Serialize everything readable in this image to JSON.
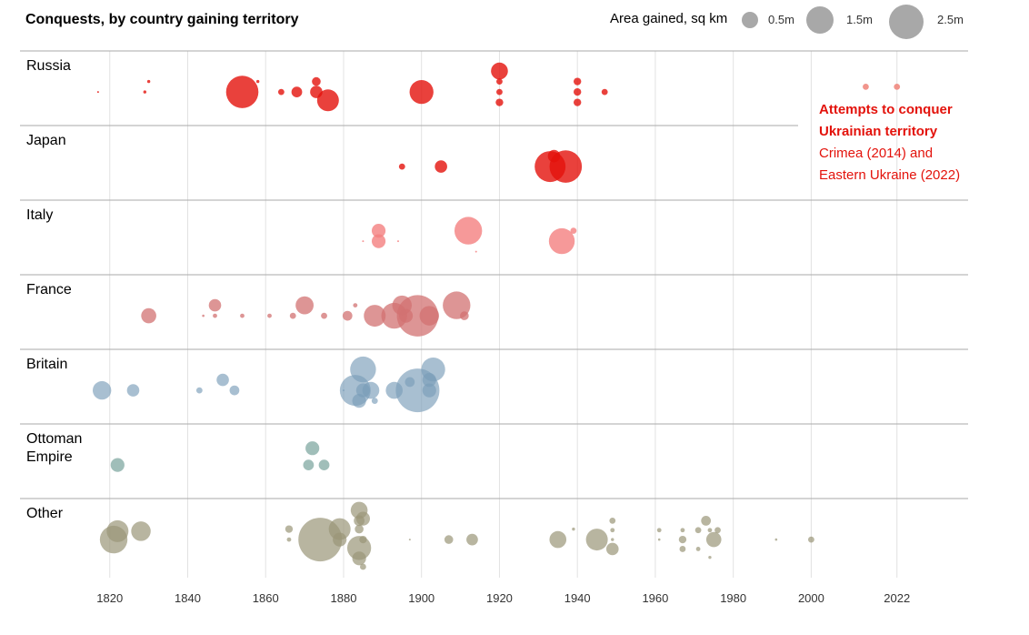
{
  "chart_data": {
    "type": "scatter",
    "title": "Conquests, by country gaining territory",
    "legend": {
      "title": "Area gained, sq km",
      "sizes": [
        {
          "label": "0.5m",
          "value": 0.5
        },
        {
          "label": "1.5m",
          "value": 1.5
        },
        {
          "label": "2.5m",
          "value": 2.5
        }
      ]
    },
    "x_ticks": [
      1820,
      1840,
      1860,
      1880,
      1900,
      1920,
      1940,
      1960,
      1980,
      2000,
      2022
    ],
    "xlim": [
      1816,
      2026
    ],
    "series": [
      {
        "name": "Russia",
        "color": "#e3120b",
        "opacity": 0.8,
        "points": [
          {
            "x": 1817,
            "y": 0,
            "v": 0.001
          },
          {
            "x": 1829,
            "y": 0,
            "v": 0.005
          },
          {
            "x": 1830,
            "y": 0.5,
            "v": 0.005
          },
          {
            "x": 1854,
            "y": 0,
            "v": 0.55
          },
          {
            "x": 1858,
            "y": 0.5,
            "v": 0.005
          },
          {
            "x": 1864,
            "y": 0,
            "v": 0.02
          },
          {
            "x": 1868,
            "y": 0,
            "v": 0.06
          },
          {
            "x": 1873,
            "y": 0.5,
            "v": 0.04
          },
          {
            "x": 1873,
            "y": 0,
            "v": 0.08
          },
          {
            "x": 1876,
            "y": -0.4,
            "v": 0.25
          },
          {
            "x": 1900,
            "y": 0,
            "v": 0.3
          },
          {
            "x": 1920,
            "y": 1,
            "v": 0.15
          },
          {
            "x": 1920,
            "y": 0.5,
            "v": 0.02
          },
          {
            "x": 1920,
            "y": 0,
            "v": 0.02
          },
          {
            "x": 1920,
            "y": -0.5,
            "v": 0.03
          },
          {
            "x": 1940,
            "y": 0.5,
            "v": 0.03
          },
          {
            "x": 1940,
            "y": 0,
            "v": 0.03
          },
          {
            "x": 1940,
            "y": -0.5,
            "v": 0.03
          },
          {
            "x": 1947,
            "y": 0,
            "v": 0.02
          }
        ]
      },
      {
        "name": "Russia (Ukraine)",
        "color": "#f08a7f",
        "opacity": 0.9,
        "points": [
          {
            "x": 2014,
            "y": 0.25,
            "v": 0.02
          },
          {
            "x": 2022,
            "y": 0.25,
            "v": 0.02
          }
        ]
      },
      {
        "name": "Japan",
        "color": "#e3120b",
        "opacity": 0.8,
        "points": [
          {
            "x": 1895,
            "y": 0,
            "v": 0.02
          },
          {
            "x": 1905,
            "y": 0,
            "v": 0.08
          },
          {
            "x": 1934,
            "y": 0.5,
            "v": 0.08
          },
          {
            "x": 1933,
            "y": 0,
            "v": 0.5
          },
          {
            "x": 1937,
            "y": 0,
            "v": 0.55
          }
        ]
      },
      {
        "name": "Italy",
        "color": "#f47f7f",
        "opacity": 0.8,
        "points": [
          {
            "x": 1885,
            "y": 0,
            "v": 0.001
          },
          {
            "x": 1889,
            "y": 0.5,
            "v": 0.1
          },
          {
            "x": 1889,
            "y": 0,
            "v": 0.1
          },
          {
            "x": 1894,
            "y": 0,
            "v": 0.001
          },
          {
            "x": 1912,
            "y": 0.5,
            "v": 0.4
          },
          {
            "x": 1914,
            "y": -0.5,
            "v": 0.001
          },
          {
            "x": 1936,
            "y": 0,
            "v": 0.35
          },
          {
            "x": 1939,
            "y": 0.5,
            "v": 0.02
          }
        ]
      },
      {
        "name": "France",
        "color": "#d27171",
        "opacity": 0.75,
        "points": [
          {
            "x": 1830,
            "y": 0,
            "v": 0.12
          },
          {
            "x": 1844,
            "y": 0,
            "v": 0.003
          },
          {
            "x": 1847,
            "y": 0.5,
            "v": 0.08
          },
          {
            "x": 1847,
            "y": 0,
            "v": 0.01
          },
          {
            "x": 1854,
            "y": 0,
            "v": 0.01
          },
          {
            "x": 1861,
            "y": 0,
            "v": 0.01
          },
          {
            "x": 1867,
            "y": 0,
            "v": 0.02
          },
          {
            "x": 1870,
            "y": 0.5,
            "v": 0.17
          },
          {
            "x": 1875,
            "y": 0,
            "v": 0.02
          },
          {
            "x": 1881,
            "y": 0,
            "v": 0.05
          },
          {
            "x": 1883,
            "y": 0.5,
            "v": 0.01
          },
          {
            "x": 1888,
            "y": 0,
            "v": 0.25
          },
          {
            "x": 1893,
            "y": 0,
            "v": 0.35
          },
          {
            "x": 1895,
            "y": 0.5,
            "v": 0.2
          },
          {
            "x": 1896,
            "y": 0,
            "v": 0.1
          },
          {
            "x": 1899,
            "y": 0,
            "v": 0.9
          },
          {
            "x": 1902,
            "y": 0,
            "v": 0.2
          },
          {
            "x": 1909,
            "y": 0.5,
            "v": 0.4
          },
          {
            "x": 1911,
            "y": 0,
            "v": 0.04
          }
        ]
      },
      {
        "name": "Britain",
        "color": "#7a9db9",
        "opacity": 0.65,
        "points": [
          {
            "x": 1818,
            "y": 0,
            "v": 0.18
          },
          {
            "x": 1826,
            "y": 0,
            "v": 0.08
          },
          {
            "x": 1843,
            "y": 0,
            "v": 0.02
          },
          {
            "x": 1849,
            "y": 0.5,
            "v": 0.08
          },
          {
            "x": 1852,
            "y": 0,
            "v": 0.05
          },
          {
            "x": 1880,
            "y": 0,
            "v": 0.002
          },
          {
            "x": 1883,
            "y": 0,
            "v": 0.5
          },
          {
            "x": 1885,
            "y": 1,
            "v": 0.35
          },
          {
            "x": 1884,
            "y": -0.5,
            "v": 0.1
          },
          {
            "x": 1885,
            "y": 0,
            "v": 0.1
          },
          {
            "x": 1887,
            "y": 0,
            "v": 0.15
          },
          {
            "x": 1888,
            "y": -0.5,
            "v": 0.02
          },
          {
            "x": 1893,
            "y": 0,
            "v": 0.15
          },
          {
            "x": 1897,
            "y": 0.4,
            "v": 0.05
          },
          {
            "x": 1899,
            "y": 0,
            "v": 1.0
          },
          {
            "x": 1902,
            "y": 0.5,
            "v": 0.1
          },
          {
            "x": 1902,
            "y": 0,
            "v": 0.1
          },
          {
            "x": 1903,
            "y": 1,
            "v": 0.3
          }
        ]
      },
      {
        "name": "Ottoman Empire",
        "color": "#8fb3ad",
        "opacity": 0.85,
        "points": [
          {
            "x": 1822,
            "y": 0,
            "v": 0.1
          },
          {
            "x": 1872,
            "y": 0.8,
            "v": 0.1
          },
          {
            "x": 1871,
            "y": 0,
            "v": 0.06
          },
          {
            "x": 1875,
            "y": 0,
            "v": 0.06
          }
        ]
      },
      {
        "name": "Other",
        "color": "#9a9677",
        "opacity": 0.7,
        "points": [
          {
            "x": 1822,
            "y": 0.4,
            "v": 0.25
          },
          {
            "x": 1821,
            "y": 0,
            "v": 0.4
          },
          {
            "x": 1828,
            "y": 0.4,
            "v": 0.2
          },
          {
            "x": 1866,
            "y": 0.5,
            "v": 0.03
          },
          {
            "x": 1866,
            "y": 0,
            "v": 0.01
          },
          {
            "x": 1874,
            "y": 0,
            "v": 1.0
          },
          {
            "x": 1879,
            "y": 0.5,
            "v": 0.25
          },
          {
            "x": 1879,
            "y": 0,
            "v": 0.1
          },
          {
            "x": 1884,
            "y": 1.4,
            "v": 0.15
          },
          {
            "x": 1884,
            "y": 0.9,
            "v": 0.06
          },
          {
            "x": 1885,
            "y": 1.0,
            "v": 0.1
          },
          {
            "x": 1884,
            "y": 0.5,
            "v": 0.04
          },
          {
            "x": 1885,
            "y": 0,
            "v": 0.03
          },
          {
            "x": 1884,
            "y": -0.4,
            "v": 0.3
          },
          {
            "x": 1884,
            "y": -0.9,
            "v": 0.1
          },
          {
            "x": 1885,
            "y": -1.3,
            "v": 0.02
          },
          {
            "x": 1897,
            "y": 0,
            "v": 0.001
          },
          {
            "x": 1907,
            "y": 0,
            "v": 0.04
          },
          {
            "x": 1913,
            "y": 0,
            "v": 0.07
          },
          {
            "x": 1935,
            "y": 0,
            "v": 0.15
          },
          {
            "x": 1939,
            "y": 0.5,
            "v": 0.005
          },
          {
            "x": 1945,
            "y": 0,
            "v": 0.25
          },
          {
            "x": 1949,
            "y": 0.9,
            "v": 0.02
          },
          {
            "x": 1949,
            "y": 0.45,
            "v": 0.01
          },
          {
            "x": 1949,
            "y": 0,
            "v": 0.005
          },
          {
            "x": 1949,
            "y": -0.45,
            "v": 0.08
          },
          {
            "x": 1961,
            "y": 0.45,
            "v": 0.01
          },
          {
            "x": 1961,
            "y": 0,
            "v": 0.003
          },
          {
            "x": 1967,
            "y": 0.45,
            "v": 0.01
          },
          {
            "x": 1967,
            "y": 0,
            "v": 0.03
          },
          {
            "x": 1967,
            "y": -0.45,
            "v": 0.02
          },
          {
            "x": 1971,
            "y": 0.45,
            "v": 0.02
          },
          {
            "x": 1971,
            "y": -0.45,
            "v": 0.01
          },
          {
            "x": 1973,
            "y": 0.9,
            "v": 0.05
          },
          {
            "x": 1974,
            "y": 0.45,
            "v": 0.01
          },
          {
            "x": 1974,
            "y": -0.85,
            "v": 0.005
          },
          {
            "x": 1975,
            "y": 0,
            "v": 0.12
          },
          {
            "x": 1976,
            "y": 0.45,
            "v": 0.02
          },
          {
            "x": 1991,
            "y": 0,
            "v": 0.003
          },
          {
            "x": 2000,
            "y": 0,
            "v": 0.02
          }
        ]
      }
    ],
    "row_labels": [
      [
        "Russia"
      ],
      [
        "Japan"
      ],
      [
        "Italy"
      ],
      [
        "France"
      ],
      [
        "Britain"
      ],
      [
        "Ottoman",
        "Empire"
      ],
      [
        "Other"
      ]
    ],
    "annotation": {
      "lines_bold": [
        "Attempts to conquer",
        "Ukrainian territory"
      ],
      "lines": [
        "Crimea (2014) and",
        "Eastern Ukraine (2022)"
      ],
      "color": "#e3120b"
    }
  }
}
